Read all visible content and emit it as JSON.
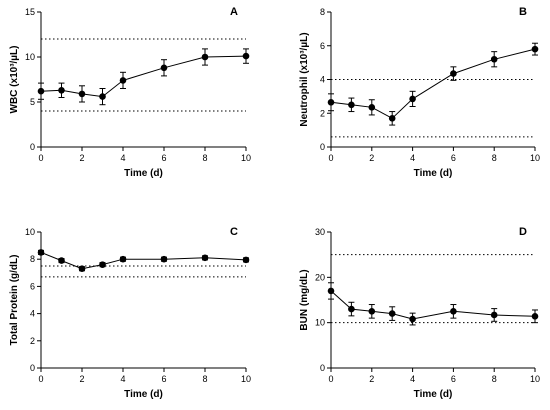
{
  "chart_data": [
    {
      "type": "line",
      "panel_label": "A",
      "xlabel": "Time (d)",
      "ylabel": "WBC (x10³/µL)",
      "x": [
        0,
        1,
        2,
        3,
        4,
        6,
        8,
        10
      ],
      "y": [
        6.2,
        6.3,
        5.9,
        5.6,
        7.4,
        8.8,
        10.0,
        10.1
      ],
      "error": [
        0.9,
        0.8,
        0.9,
        0.9,
        0.9,
        0.9,
        0.9,
        0.8
      ],
      "xlim": [
        0,
        10
      ],
      "ylim": [
        0,
        15
      ],
      "xticks": [
        0,
        2,
        4,
        6,
        8,
        10
      ],
      "yticks": [
        0,
        5,
        10,
        15
      ],
      "reference_lines": [
        4,
        12
      ],
      "grid": false
    },
    {
      "type": "line",
      "panel_label": "B",
      "xlabel": "Time (d)",
      "ylabel": "Neutrophil (x10³/µL)",
      "x": [
        0,
        1,
        2,
        3,
        4,
        6,
        8,
        10
      ],
      "y": [
        2.65,
        2.5,
        2.35,
        1.7,
        2.85,
        4.35,
        5.2,
        5.8
      ],
      "error": [
        0.5,
        0.4,
        0.45,
        0.4,
        0.45,
        0.4,
        0.45,
        0.35
      ],
      "xlim": [
        0,
        10
      ],
      "ylim": [
        0,
        8
      ],
      "xticks": [
        0,
        2,
        4,
        6,
        8,
        10
      ],
      "yticks": [
        0,
        2,
        4,
        6,
        8
      ],
      "reference_lines": [
        0.6,
        4
      ],
      "grid": false
    },
    {
      "type": "line",
      "panel_label": "C",
      "xlabel": "Time (d)",
      "ylabel": "Total Protein (g/dL)",
      "x": [
        0,
        1,
        2,
        3,
        4,
        6,
        8,
        10
      ],
      "y": [
        8.5,
        7.9,
        7.3,
        7.6,
        8.0,
        8.0,
        8.1,
        7.95
      ],
      "error": [
        0.15,
        0.15,
        0.15,
        0.15,
        0.15,
        0.15,
        0.15,
        0.15
      ],
      "xlim": [
        0,
        10
      ],
      "ylim": [
        0,
        10
      ],
      "xticks": [
        0,
        2,
        4,
        6,
        8,
        10
      ],
      "yticks": [
        0,
        2,
        4,
        6,
        8,
        10
      ],
      "reference_lines": [
        6.7,
        7.5
      ],
      "grid": false
    },
    {
      "type": "line",
      "panel_label": "D",
      "xlabel": "Time (d)",
      "ylabel": "BUN (mg/dL)",
      "x": [
        0,
        1,
        2,
        3,
        4,
        6,
        8,
        10
      ],
      "y": [
        17,
        13,
        12.5,
        12,
        10.8,
        12.5,
        11.7,
        11.4
      ],
      "error": [
        1.8,
        1.5,
        1.5,
        1.5,
        1.3,
        1.5,
        1.4,
        1.4
      ],
      "xlim": [
        0,
        10
      ],
      "ylim": [
        0,
        30
      ],
      "xticks": [
        0,
        2,
        4,
        6,
        8,
        10
      ],
      "yticks": [
        0,
        10,
        20,
        30
      ],
      "reference_lines": [
        10,
        25
      ],
      "grid": false
    }
  ]
}
